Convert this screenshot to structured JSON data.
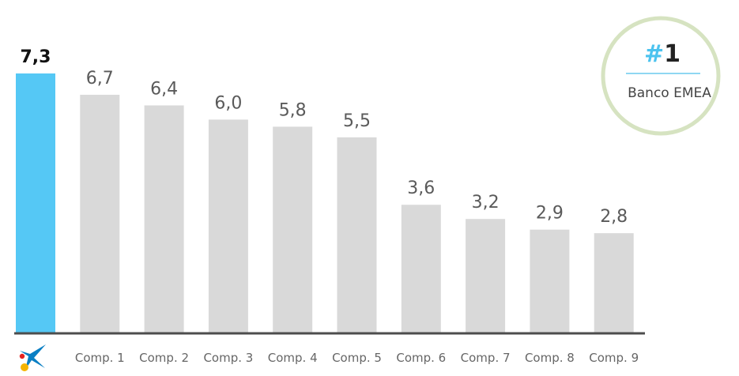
{
  "chart_data": {
    "type": "bar",
    "categories": [
      "",
      "Comp. 1",
      "Comp. 2",
      "Comp. 3",
      "Comp. 4",
      "Comp. 5",
      "Comp. 6",
      "Comp. 7",
      "Comp. 8",
      "Comp. 9"
    ],
    "values": [
      7.3,
      6.7,
      6.4,
      6.0,
      5.8,
      5.5,
      3.6,
      3.2,
      2.9,
      2.8
    ],
    "value_labels": [
      "7,3",
      "6,7",
      "6,4",
      "6,0",
      "5,8",
      "5,5",
      "3,6",
      "3,2",
      "2,9",
      "2,8"
    ],
    "highlight_index": 0,
    "ylim": [
      0,
      7.3
    ],
    "grid": false,
    "colors": {
      "highlight": "#55c8f5",
      "bar": "#d9d9d9",
      "axis": "#4d4d4d"
    }
  },
  "badge": {
    "hash": "#",
    "rank": "1",
    "label": "Banco EMEA",
    "ring_color": "#d6e3c1",
    "divider_color": "#8fd7f2"
  },
  "logo": {
    "icon": "star-logo-icon"
  }
}
